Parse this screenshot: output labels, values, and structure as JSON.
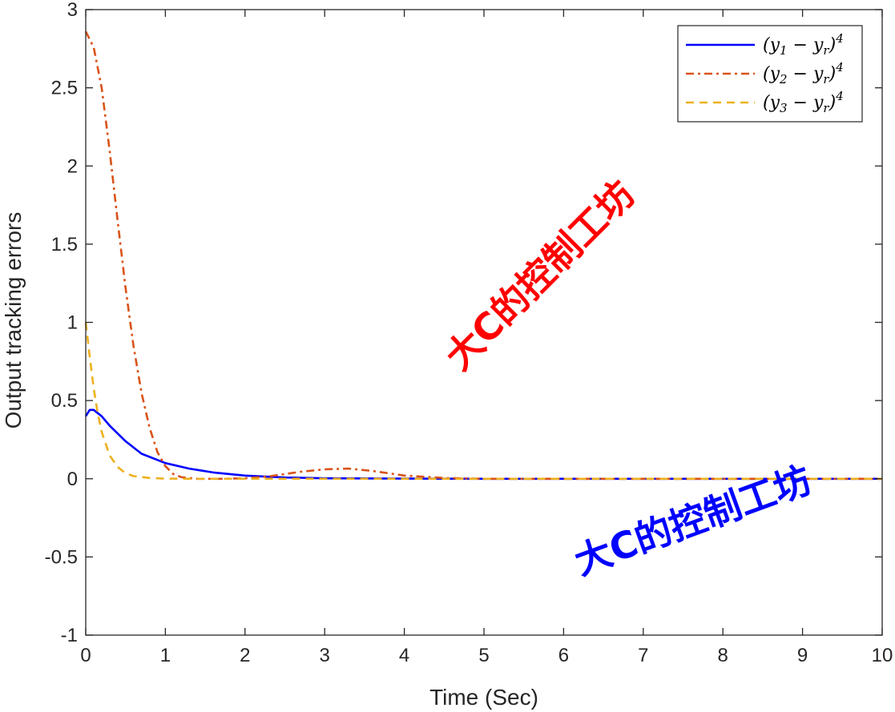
{
  "chart_data": {
    "type": "line",
    "xlabel": "Time (Sec)",
    "ylabel": "Output tracking errors",
    "xlim": [
      0,
      10
    ],
    "ylim": [
      -1,
      3
    ],
    "xticks": [
      "0",
      "1",
      "2",
      "3",
      "4",
      "5",
      "6",
      "7",
      "8",
      "9",
      "10"
    ],
    "yticks": [
      "-1",
      "-0.5",
      "0",
      "0.5",
      "1",
      "1.5",
      "2",
      "2.5",
      "3"
    ],
    "grid": false,
    "legend_position": "top-right",
    "series": [
      {
        "name": "(y1 − yr)4",
        "color": "#0000ff",
        "dash": "solid",
        "x": [
          0,
          0.05,
          0.1,
          0.2,
          0.3,
          0.5,
          0.7,
          1.0,
          1.3,
          1.6,
          2.0,
          2.5,
          3.0,
          4.0,
          5.0,
          10.0
        ],
        "y": [
          0.4,
          0.44,
          0.44,
          0.4,
          0.34,
          0.24,
          0.16,
          0.1,
          0.065,
          0.04,
          0.02,
          0.008,
          0.003,
          0.001,
          0,
          0
        ]
      },
      {
        "name": "(y2 − yr)4",
        "color": "#d95319",
        "dash": "dashdot",
        "x": [
          0,
          0.1,
          0.2,
          0.3,
          0.4,
          0.5,
          0.6,
          0.7,
          0.8,
          0.9,
          1.0,
          1.1,
          1.2,
          1.4,
          1.7,
          2.0,
          2.3,
          2.7,
          3.0,
          3.3,
          3.6,
          4.0,
          4.5,
          5.0,
          10.0
        ],
        "y": [
          2.86,
          2.76,
          2.5,
          2.1,
          1.65,
          1.22,
          0.85,
          0.55,
          0.33,
          0.17,
          0.08,
          0.03,
          0.01,
          0,
          0,
          0.003,
          0.015,
          0.045,
          0.06,
          0.065,
          0.05,
          0.02,
          0.005,
          0,
          0
        ]
      },
      {
        "name": "(y3 − yr)4",
        "color": "#edb120",
        "dash": "dashed",
        "x": [
          0,
          0.05,
          0.1,
          0.15,
          0.2,
          0.3,
          0.4,
          0.5,
          0.6,
          0.8,
          1.0,
          1.3,
          10.0
        ],
        "y": [
          1.0,
          0.78,
          0.58,
          0.42,
          0.3,
          0.15,
          0.075,
          0.035,
          0.017,
          0.005,
          0.001,
          0,
          0
        ]
      }
    ]
  },
  "legend": {
    "entries": [
      {
        "base": "(y",
        "sub": "1",
        "mid": " − y",
        "sub2": "r",
        "close": ")",
        "sup": "4"
      },
      {
        "base": "(y",
        "sub": "2",
        "mid": " − y",
        "sub2": "r",
        "close": ")",
        "sup": "4"
      },
      {
        "base": "(y",
        "sub": "3",
        "mid": " − y",
        "sub2": "r",
        "close": ")",
        "sup": "4"
      }
    ]
  },
  "watermarks": [
    {
      "text": "大C的控制工坊",
      "color": "#ff0000"
    },
    {
      "text": "大C的控制工坊",
      "color": "#0000ff"
    }
  ]
}
